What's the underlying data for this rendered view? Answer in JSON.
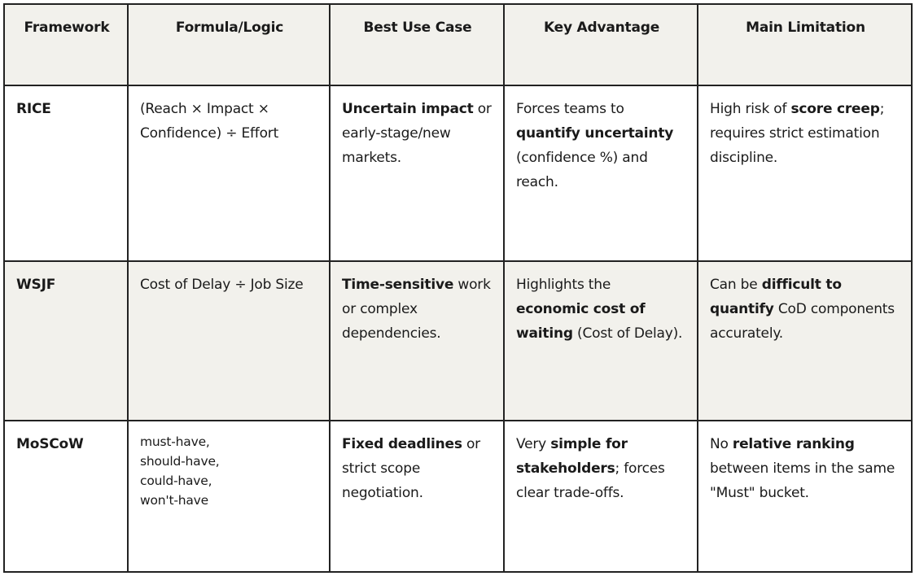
{
  "headers": [
    "Framework",
    "Formula/Logic",
    "Best Use Case",
    "Key Advantage",
    "Main Limitation"
  ],
  "rows": [
    {
      "shaded": false,
      "cells": [
        [
          {
            "t": "RICE",
            "b": true
          }
        ],
        [
          {
            "t": "(Reach × Impact × Confidence) ÷ Effort",
            "b": false
          }
        ],
        [
          {
            "t": "Uncertain impact",
            "b": true
          },
          {
            "t": " or early-stage/new markets.",
            "b": false
          }
        ],
        [
          {
            "t": "Forces teams to ",
            "b": false
          },
          {
            "t": "quantify uncertainty",
            "b": true
          },
          {
            "t": " (confidence %) and reach.",
            "b": false
          }
        ],
        [
          {
            "t": "High risk of ",
            "b": false
          },
          {
            "t": "score creep",
            "b": true
          },
          {
            "t": "; requires strict estimation discipline.",
            "b": false
          }
        ]
      ]
    },
    {
      "shaded": true,
      "cells": [
        [
          {
            "t": "WSJF",
            "b": true
          }
        ],
        [
          {
            "t": "Cost of Delay ÷ Job Size",
            "b": false
          }
        ],
        [
          {
            "t": "Time-sensitive",
            "b": true
          },
          {
            "t": " work or complex dependencies.",
            "b": false
          }
        ],
        [
          {
            "t": "Highlights the ",
            "b": false
          },
          {
            "t": "economic cost of waiting",
            "b": true
          },
          {
            "t": " (Cost of Delay).",
            "b": false
          }
        ],
        [
          {
            "t": "Can be ",
            "b": false
          },
          {
            "t": "difficult to quantify",
            "b": true
          },
          {
            "t": " CoD components accurately.",
            "b": false
          }
        ]
      ]
    },
    {
      "shaded": false,
      "cells": [
        [
          {
            "t": "MoSCoW",
            "b": true
          }
        ],
        [
          {
            "t": "must-have,\nshould-have,\ncould-have,\nwon't-have",
            "b": false
          }
        ],
        [
          {
            "t": "Fixed deadlines",
            "b": true
          },
          {
            "t": " or strict scope negotiation.",
            "b": false
          }
        ],
        [
          {
            "t": "Very ",
            "b": false
          },
          {
            "t": "simple for stakeholders",
            "b": true
          },
          {
            "t": "; forces clear trade-offs.",
            "b": false
          }
        ],
        [
          {
            "t": "No ",
            "b": false
          },
          {
            "t": "relative ranking",
            "b": true
          },
          {
            "t": " between items in the same \"Must\" bucket.",
            "b": false
          }
        ]
      ]
    }
  ]
}
